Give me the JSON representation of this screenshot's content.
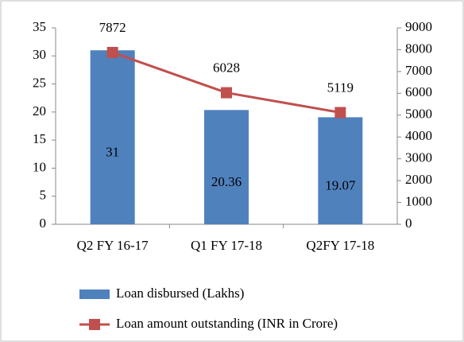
{
  "chart_data": {
    "type": "combo",
    "categories": [
      "Q2 FY 16-17",
      "Q1 FY 17-18",
      "Q2FY 17-18"
    ],
    "series": [
      {
        "name": "Loan disbursed (Lakhs)",
        "type": "bar",
        "color": "#4f81bd",
        "values": [
          31,
          20.36,
          19.07
        ]
      },
      {
        "name": "Loan amount outstanding (INR in Crore)",
        "type": "line",
        "color": "#c0504d",
        "axis": "y2",
        "values": [
          7872,
          6028,
          5119
        ]
      }
    ],
    "ylim": [
      0,
      35
    ],
    "yticks": [
      0,
      5,
      10,
      15,
      20,
      25,
      30,
      35
    ],
    "y2lim": [
      0,
      9000
    ],
    "y2ticks": [
      0,
      1000,
      2000,
      3000,
      4000,
      5000,
      6000,
      7000,
      8000,
      9000
    ],
    "grid": false,
    "legend": "bottom"
  }
}
